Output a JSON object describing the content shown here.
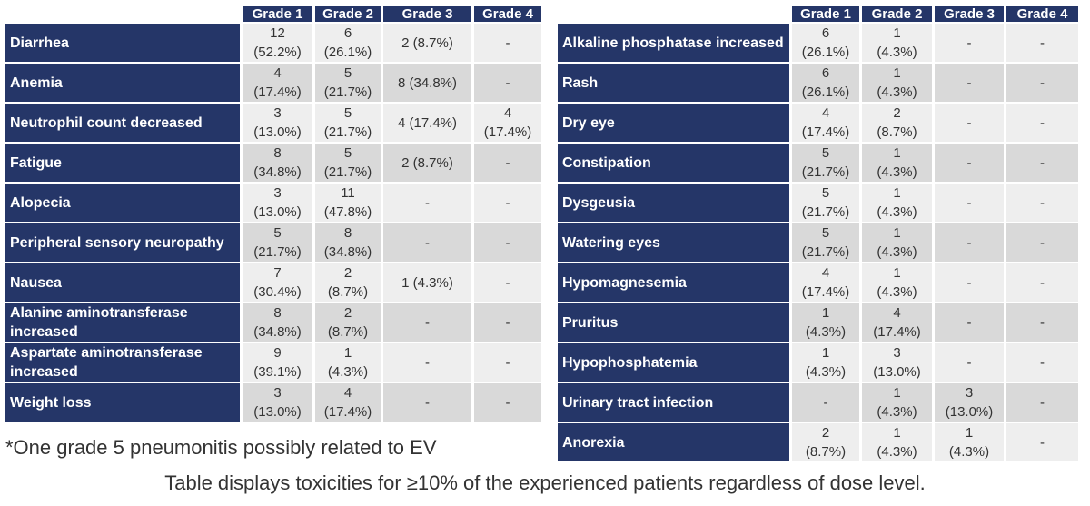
{
  "left_table": {
    "headers": [
      "",
      "Grade 1",
      "Grade 2",
      "Grade 3",
      "Grade 4"
    ],
    "rows": [
      {
        "name": "Diarrhea",
        "g1": "12\n(52.2%)",
        "g2": "6\n(26.1%)",
        "g3": "2 (8.7%)",
        "g4": "-"
      },
      {
        "name": "Anemia",
        "g1": "4\n(17.4%)",
        "g2": "5\n(21.7%)",
        "g3": "8 (34.8%)",
        "g4": "-"
      },
      {
        "name": "Neutrophil count decreased",
        "g1": "3\n(13.0%)",
        "g2": "5\n(21.7%)",
        "g3": "4 (17.4%)",
        "g4": "4\n(17.4%)"
      },
      {
        "name": "Fatigue",
        "g1": "8\n(34.8%)",
        "g2": "5\n(21.7%)",
        "g3": "2 (8.7%)",
        "g4": "-"
      },
      {
        "name": "Alopecia",
        "g1": "3\n(13.0%)",
        "g2": "11\n(47.8%)",
        "g3": "-",
        "g4": "-"
      },
      {
        "name": "Peripheral sensory neuropathy",
        "g1": "5\n(21.7%)",
        "g2": "8\n(34.8%)",
        "g3": "-",
        "g4": "-"
      },
      {
        "name": "Nausea",
        "g1": "7\n(30.4%)",
        "g2": "2\n(8.7%)",
        "g3": "1 (4.3%)",
        "g4": "-"
      },
      {
        "name": "Alanine aminotransferase increased",
        "g1": "8\n(34.8%)",
        "g2": "2\n(8.7%)",
        "g3": "-",
        "g4": "-"
      },
      {
        "name": "Aspartate aminotransferase increased",
        "g1": "9\n(39.1%)",
        "g2": "1\n(4.3%)",
        "g3": "-",
        "g4": "-"
      },
      {
        "name": "Weight loss",
        "g1": "3\n(13.0%)",
        "g2": "4\n(17.4%)",
        "g3": "-",
        "g4": "-"
      }
    ]
  },
  "right_table": {
    "headers": [
      "",
      "Grade 1",
      "Grade 2",
      "Grade 3",
      "Grade 4"
    ],
    "rows": [
      {
        "name": "Alkaline phosphatase increased",
        "g1": "6\n(26.1%)",
        "g2": "1\n(4.3%)",
        "g3": "-",
        "g4": "-"
      },
      {
        "name": "Rash",
        "g1": "6\n(26.1%)",
        "g2": "1\n(4.3%)",
        "g3": "-",
        "g4": "-"
      },
      {
        "name": "Dry eye",
        "g1": "4\n(17.4%)",
        "g2": "2\n(8.7%)",
        "g3": "-",
        "g4": "-"
      },
      {
        "name": "Constipation",
        "g1": "5\n(21.7%)",
        "g2": "1\n(4.3%)",
        "g3": "-",
        "g4": "-"
      },
      {
        "name": "Dysgeusia",
        "g1": "5\n(21.7%)",
        "g2": "1\n(4.3%)",
        "g3": "-",
        "g4": "-"
      },
      {
        "name": "Watering eyes",
        "g1": "5\n(21.7%)",
        "g2": "1\n(4.3%)",
        "g3": "-",
        "g4": "-"
      },
      {
        "name": "Hypomagnesemia",
        "g1": "4\n(17.4%)",
        "g2": "1\n(4.3%)",
        "g3": "-",
        "g4": "-"
      },
      {
        "name": "Pruritus",
        "g1": "1\n(4.3%)",
        "g2": "4\n(17.4%)",
        "g3": "-",
        "g4": "-"
      },
      {
        "name": "Hypophosphatemia",
        "g1": "1\n(4.3%)",
        "g2": "3\n(13.0%)",
        "g3": "-",
        "g4": "-"
      },
      {
        "name": "Urinary tract infection",
        "g1": "-",
        "g2": "1\n(4.3%)",
        "g3": "3\n(13.0%)",
        "g4": "-"
      },
      {
        "name": "Anorexia",
        "g1": "2\n(8.7%)",
        "g2": "1\n(4.3%)",
        "g3": "1\n(4.3%)",
        "g4": "-"
      }
    ]
  },
  "footnote": "*One grade 5 pneumonitis possibly related to EV",
  "caption": "Table displays toxicities for ≥10% of the experienced patients regardless of dose level.",
  "colors": {
    "header_bg": "#253668",
    "header_text": "#ffffff",
    "cell_light": "#eeeeee",
    "cell_dark": "#d9d9d9"
  }
}
